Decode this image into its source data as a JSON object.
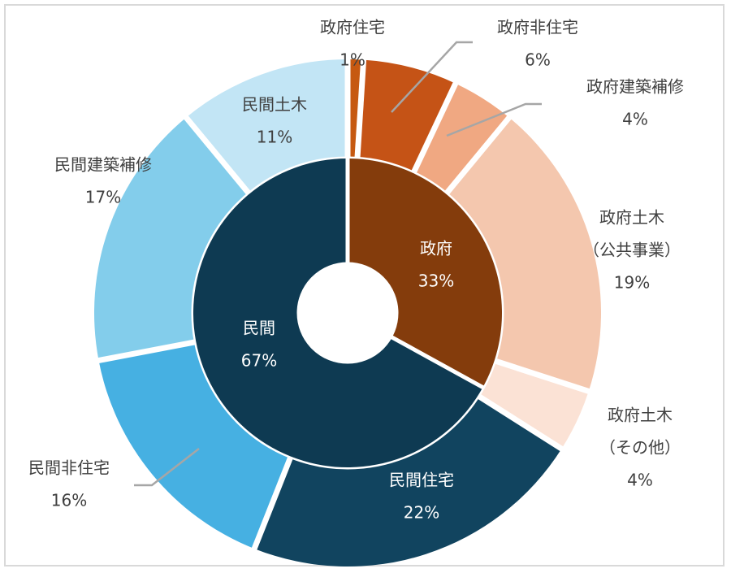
{
  "chart_data": {
    "type": "pie",
    "subtype": "sunburst-donut",
    "inner": [
      {
        "name": "政府",
        "value": 33,
        "label": "33%",
        "color": "#843c0c"
      },
      {
        "name": "民間",
        "value": 67,
        "label": "67%",
        "color": "#0e3a52"
      }
    ],
    "outer": [
      {
        "name": "政府住宅",
        "name_lines": [
          "政府住宅"
        ],
        "value": 1,
        "label": "1%",
        "color": "#c65911",
        "group": "政府"
      },
      {
        "name": "政府非住宅",
        "name_lines": [
          "政府非住宅"
        ],
        "value": 6,
        "label": "6%",
        "color": "#c55316",
        "group": "政府"
      },
      {
        "name": "政府建築補修",
        "name_lines": [
          "政府建築補修"
        ],
        "value": 4,
        "label": "4%",
        "color": "#f0a882",
        "group": "政府"
      },
      {
        "name": "政府土木（公共事業）",
        "name_lines": [
          "政府土木",
          "（公共事業）"
        ],
        "value": 19,
        "label": "19%",
        "color": "#f4c7ae",
        "group": "政府"
      },
      {
        "name": "政府土木（その他）",
        "name_lines": [
          "政府土木",
          "（その他）"
        ],
        "value": 4,
        "label": "4%",
        "color": "#fbe2d5",
        "group": "政府"
      },
      {
        "name": "民間住宅",
        "name_lines": [
          "民間住宅"
        ],
        "value": 22,
        "label": "22%",
        "color": "#11445f",
        "group": "民間"
      },
      {
        "name": "民間非住宅",
        "name_lines": [
          "民間非住宅"
        ],
        "value": 16,
        "label": "16%",
        "color": "#46b0e2",
        "group": "民間"
      },
      {
        "name": "民間建築補修",
        "name_lines": [
          "民間建築補修"
        ],
        "value": 17,
        "label": "17%",
        "color": "#83cdeb",
        "group": "民間"
      },
      {
        "name": "民間土木",
        "name_lines": [
          "民間土木"
        ],
        "value": 11,
        "label": "11%",
        "color": "#c2e5f5",
        "group": "民間"
      }
    ]
  }
}
